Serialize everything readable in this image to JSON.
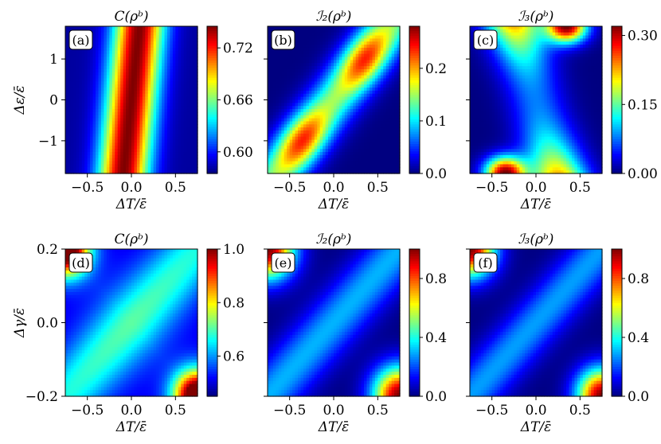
{
  "colors": {
    "colormap": "jet",
    "colormap_stops": [
      "#00007f",
      "#0000ff",
      "#00ffff",
      "#ffff00",
      "#ff0000",
      "#7f0000"
    ]
  },
  "chart_data": [
    {
      "type": "heatmap",
      "panel_label": "(a)",
      "title": "C(ρᵇ)",
      "xlabel": "ΔT/ε̄",
      "ylabel": "Δε/ε̄",
      "xlim": [
        -0.75,
        0.75
      ],
      "ylim": [
        -1.8,
        1.8
      ],
      "xticks": [
        "−0.5",
        "0.0",
        "0.5"
      ],
      "yticks": [
        "−1",
        "0",
        "1"
      ],
      "colorbar": {
        "range": [
          0.575,
          0.745
        ],
        "ticks": [
          "0.60",
          "0.66",
          "0.72"
        ]
      },
      "z_description": "vertical band peaking near ΔT≈0, weakly tilted",
      "z_max": 0.745,
      "z_min": 0.575
    },
    {
      "type": "heatmap",
      "panel_label": "(b)",
      "title": "ℐ₂(ρᵇ)",
      "xlabel": "ΔT/ε̄",
      "ylabel": "",
      "xlim": [
        -0.75,
        0.75
      ],
      "ylim": [
        -1.8,
        1.8
      ],
      "xticks": [
        "−0.5",
        "0.0",
        "0.5"
      ],
      "yticks": [],
      "colorbar": {
        "range": [
          0.0,
          0.28
        ],
        "ticks": [
          "0.0",
          "0.1",
          "0.2"
        ]
      },
      "peaks": [
        {
          "x": -0.35,
          "y": -1.0,
          "z": 0.28
        },
        {
          "x": 0.35,
          "y": 1.0,
          "z": 0.27
        }
      ]
    },
    {
      "type": "heatmap",
      "panel_label": "(c)",
      "title": "ℐ₃(ρᵇ)",
      "xlabel": "ΔT/ε̄",
      "ylabel": "",
      "xlim": [
        -0.75,
        0.75
      ],
      "ylim": [
        -1.8,
        1.8
      ],
      "xticks": [
        "−0.5",
        "0.0",
        "0.5"
      ],
      "yticks": [],
      "colorbar": {
        "range": [
          0.0,
          0.32
        ],
        "ticks": [
          "0.00",
          "0.15",
          "0.30"
        ]
      },
      "peaks": [
        {
          "x": -0.35,
          "y": -1.8,
          "z": 0.32
        },
        {
          "x": 0.35,
          "y": 1.8,
          "z": 0.32
        }
      ]
    },
    {
      "type": "heatmap",
      "panel_label": "(d)",
      "title": "C(ρᵇ)",
      "xlabel": "ΔT/ε̄",
      "ylabel": "Δγ/ε̄",
      "xlim": [
        -0.75,
        0.75
      ],
      "ylim": [
        -0.2,
        0.2
      ],
      "xticks": [
        "−0.5",
        "0.0",
        "0.5"
      ],
      "yticks": [
        "−0.2",
        "0.0",
        "0.2"
      ],
      "colorbar": {
        "range": [
          0.45,
          1.0
        ],
        "ticks": [
          "0.6",
          "0.8",
          "1.0"
        ]
      },
      "peaks": [
        {
          "x": -0.75,
          "y": 0.2,
          "z": 1.0
        },
        {
          "x": 0.75,
          "y": -0.2,
          "z": 1.0
        }
      ]
    },
    {
      "type": "heatmap",
      "panel_label": "(e)",
      "title": "ℐ₂(ρᵇ)",
      "xlabel": "ΔT/ε̄",
      "ylabel": "",
      "xlim": [
        -0.75,
        0.75
      ],
      "ylim": [
        -0.2,
        0.2
      ],
      "xticks": [
        "−0.5",
        "0.0",
        "0.5"
      ],
      "yticks": [],
      "colorbar": {
        "range": [
          0.0,
          1.0
        ],
        "ticks": [
          "0.0",
          "0.4",
          "0.8"
        ]
      },
      "peaks": [
        {
          "x": -0.75,
          "y": 0.2,
          "z": 1.0
        },
        {
          "x": 0.75,
          "y": -0.2,
          "z": 1.0
        }
      ]
    },
    {
      "type": "heatmap",
      "panel_label": "(f)",
      "title": "ℐ₃(ρᵇ)",
      "xlabel": "ΔT/ε̄",
      "ylabel": "",
      "xlim": [
        -0.75,
        0.75
      ],
      "ylim": [
        -0.2,
        0.2
      ],
      "xticks": [
        "−0.5",
        "0.0",
        "0.5"
      ],
      "yticks": [],
      "colorbar": {
        "range": [
          0.0,
          1.0
        ],
        "ticks": [
          "0.0",
          "0.4",
          "0.8"
        ]
      },
      "peaks": [
        {
          "x": -0.75,
          "y": 0.2,
          "z": 1.0
        },
        {
          "x": 0.75,
          "y": -0.2,
          "z": 1.0
        }
      ]
    }
  ]
}
